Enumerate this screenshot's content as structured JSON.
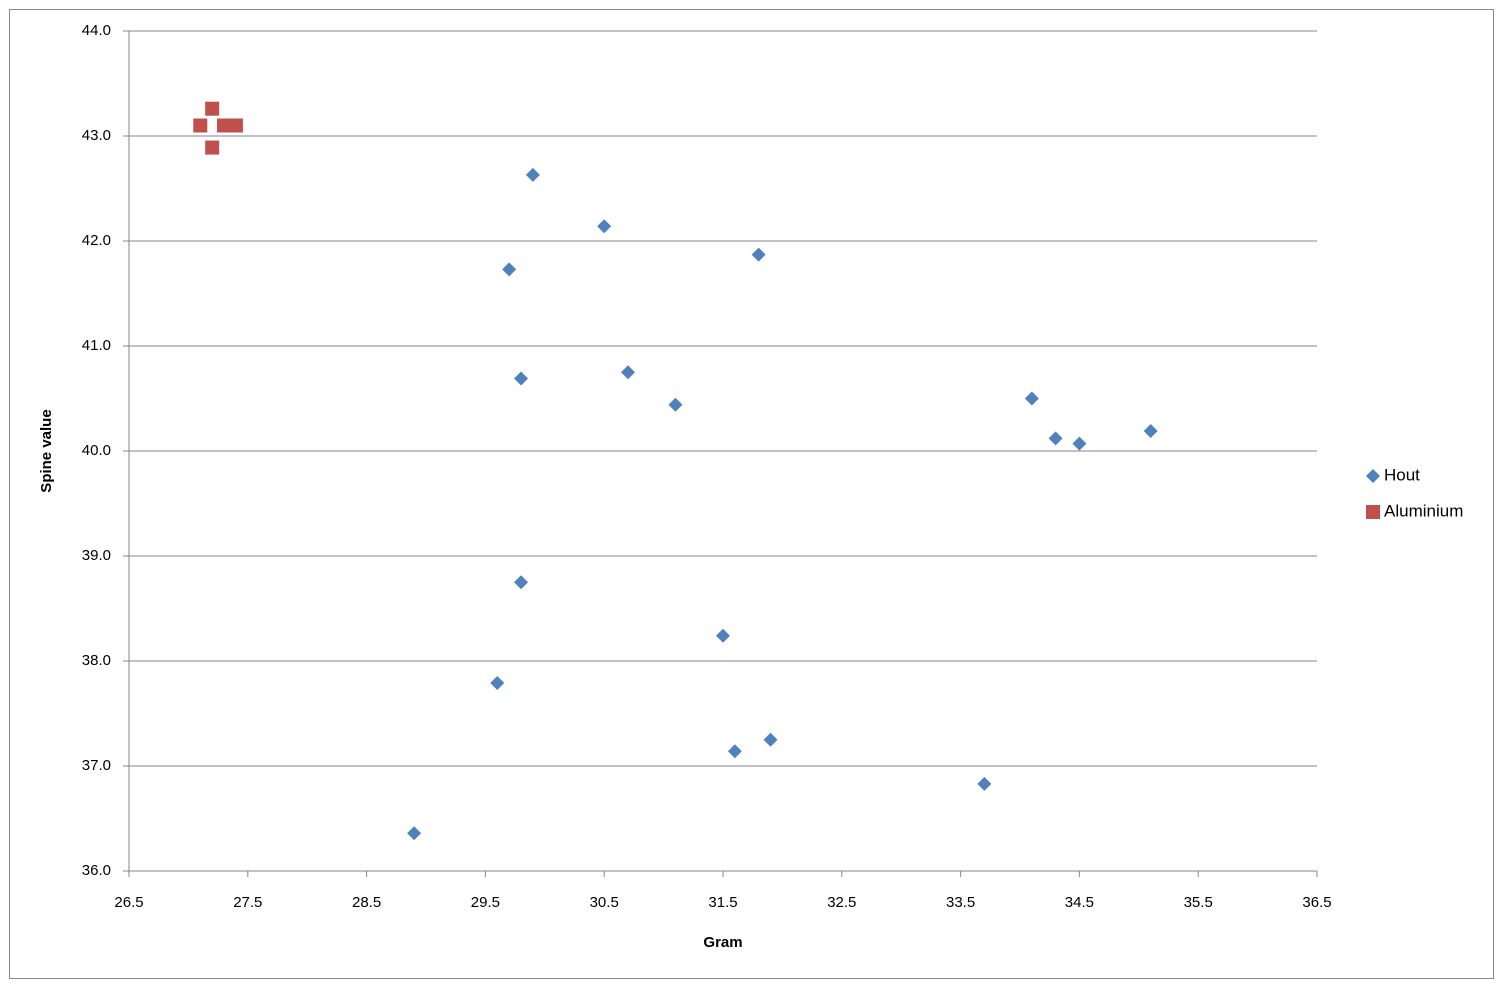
{
  "chart_data": {
    "type": "scatter",
    "x_label": "Gram",
    "y_label": "Spine value",
    "xlim": [
      26.5,
      36.5
    ],
    "xticks": [
      26.5,
      27.5,
      28.5,
      29.5,
      30.5,
      31.5,
      32.5,
      33.5,
      34.5,
      35.5,
      36.5
    ],
    "ylim": [
      36,
      44
    ],
    "yticks": [
      {
        "value": 36,
        "label": "36.0"
      },
      {
        "value": 37,
        "label": "37.0"
      },
      {
        "value": 38,
        "label": "38.0"
      },
      {
        "value": 39,
        "label": "39.0"
      },
      {
        "value": 40,
        "label": "40.0"
      },
      {
        "value": 41,
        "label": "41.0"
      },
      {
        "value": 42,
        "label": "42.0"
      },
      {
        "value": 43,
        "label": "43.0"
      },
      {
        "value": 44,
        "label": "44.0"
      }
    ],
    "grid": true,
    "legend": "right",
    "series": [
      {
        "name": "Hout",
        "color": "#4f81bd",
        "marker": "diamond",
        "x": [
          29.9,
          30.5,
          29.7,
          31.8,
          29.8,
          30.7,
          31.1,
          34.1,
          34.3,
          34.5,
          35.1,
          29.8,
          31.5,
          29.6,
          31.6,
          31.9,
          33.7,
          28.9
        ],
        "values": [
          42.63,
          42.14,
          41.73,
          41.87,
          40.69,
          40.75,
          40.44,
          40.5,
          40.12,
          40.07,
          40.19,
          38.75,
          38.24,
          37.79,
          37.14,
          37.25,
          36.83,
          36.36
        ]
      },
      {
        "name": "Aluminium",
        "color": "#c0504d",
        "marker": "square",
        "x": [
          27.2,
          27.1,
          27.3,
          27.4,
          27.2
        ],
        "values": [
          43.26,
          43.1,
          43.1,
          43.1,
          42.89
        ]
      }
    ]
  }
}
